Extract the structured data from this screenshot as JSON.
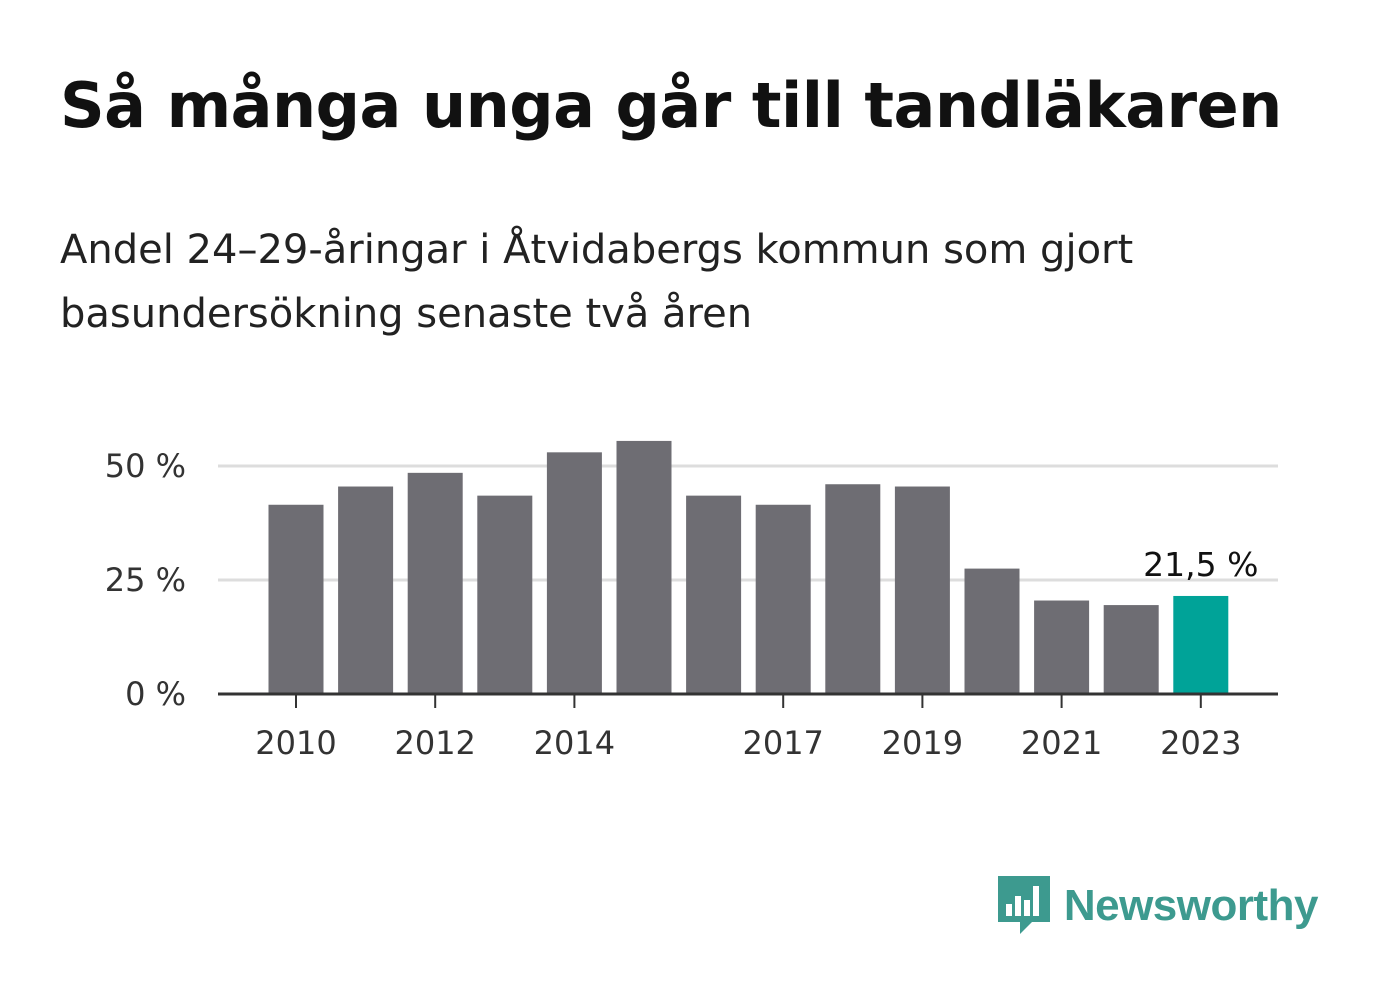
{
  "title": "Så många unga går till tandläkaren",
  "subtitle": "Andel 24–29-åringar i Åtvidabergs kommun som gjort basundersökning senaste två åren",
  "logo": {
    "text": "Newsworthy",
    "icon": "bar-chart-speech-bubble-icon"
  },
  "colors": {
    "bar": "#6e6d73",
    "highlight": "#00a398",
    "grid": "#dddddd",
    "axis": "#333333",
    "brand": "#3d9a8f"
  },
  "chart_data": {
    "type": "bar",
    "categories": [
      "2010",
      "2011",
      "2012",
      "2013",
      "2014",
      "2015",
      "2016",
      "2017",
      "2018",
      "2019",
      "2020",
      "2021",
      "2022",
      "2023"
    ],
    "values": [
      41.5,
      45.5,
      48.5,
      43.5,
      53,
      55.5,
      43.5,
      41.5,
      46,
      45.5,
      27.5,
      20.5,
      19.5,
      21.5
    ],
    "highlight_index": 13,
    "highlight_label": "21,5 %",
    "x_tick_labels": [
      "2010",
      "2012",
      "2014",
      "2017",
      "2019",
      "2021",
      "2023"
    ],
    "y_ticks": [
      {
        "value": 0,
        "label": "0 %"
      },
      {
        "value": 25,
        "label": "25 %"
      },
      {
        "value": 50,
        "label": "50 %"
      }
    ],
    "ylim": [
      0,
      60
    ],
    "grid": true,
    "xlabel": "",
    "ylabel": ""
  }
}
